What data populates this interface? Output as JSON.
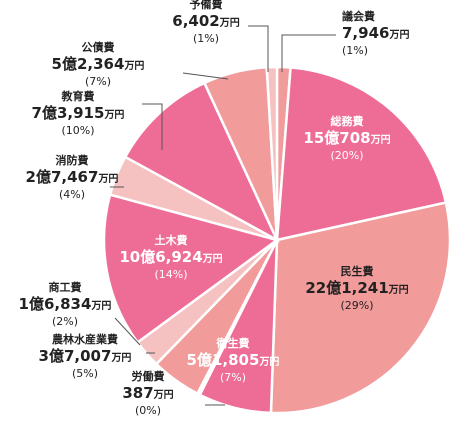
{
  "chart_data": {
    "type": "pie",
    "unit": "万円",
    "slices": [
      {
        "name": "議会費",
        "amount": "7,946",
        "unit": "万円",
        "percent": "(1%)",
        "value": 1,
        "color": "#f29b9b"
      },
      {
        "name": "総務費",
        "amount": "15億708",
        "unit": "万円",
        "percent": "(20%)",
        "value": 20,
        "color": "#ee6d97"
      },
      {
        "name": "民生費",
        "amount": "22億1,241",
        "unit": "万円",
        "percent": "(29%)",
        "value": 29,
        "color": "#f29b9b"
      },
      {
        "name": "衛生費",
        "amount": "5億1,805",
        "unit": "万円",
        "percent": "(7%)",
        "value": 7,
        "color": "#ee6d97"
      },
      {
        "name": "労働費",
        "amount": "387",
        "unit": "万円",
        "percent": "(0%)",
        "value": 0,
        "color": "#f29b9b"
      },
      {
        "name": "農林水産業費",
        "amount": "3億7,007",
        "unit": "万円",
        "percent": "(5%)",
        "value": 5,
        "color": "#f29b9b"
      },
      {
        "name": "商工費",
        "amount": "1億6,834",
        "unit": "万円",
        "percent": "(2%)",
        "value": 2,
        "color": "#f6c1c1"
      },
      {
        "name": "土木費",
        "amount": "10億6,924",
        "unit": "万円",
        "percent": "(14%)",
        "value": 14,
        "color": "#ee6d97"
      },
      {
        "name": "消防費",
        "amount": "2億7,467",
        "unit": "万円",
        "percent": "(4%)",
        "value": 4,
        "color": "#f6c1c1"
      },
      {
        "name": "教育費",
        "amount": "7億3,915",
        "unit": "万円",
        "percent": "(10%)",
        "value": 10,
        "color": "#ee6d97"
      },
      {
        "name": "公債費",
        "amount": "5億2,364",
        "unit": "万円",
        "percent": "(7%)",
        "value": 7,
        "color": "#f29b9b"
      },
      {
        "name": "予備費",
        "amount": "6,402",
        "unit": "万円",
        "percent": "(1%)",
        "value": 1,
        "color": "#f6c1c1"
      }
    ]
  }
}
